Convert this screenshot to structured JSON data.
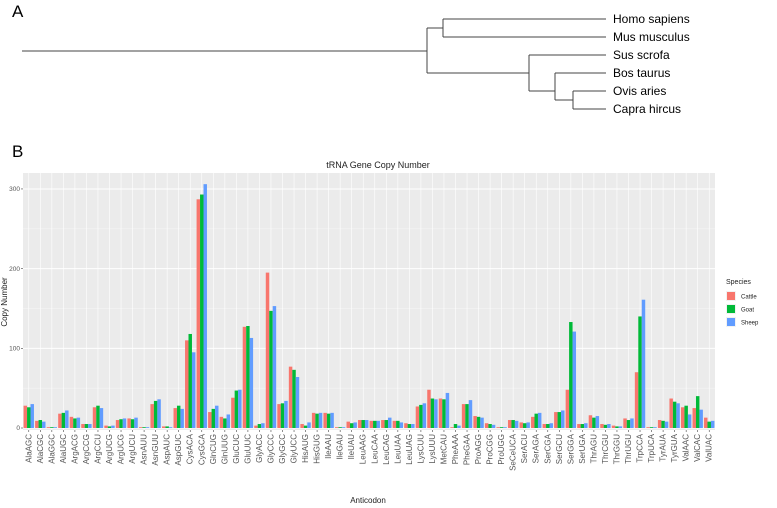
{
  "panels": {
    "a": "A",
    "b": "B"
  },
  "tree": {
    "species": [
      "Homo sapiens",
      "Mus musculus",
      "Sus scrofa",
      "Bos taurus",
      "Ovis aries",
      "Capra hircus"
    ]
  },
  "chart_data": {
    "type": "bar",
    "title": "tRNA Gene Copy Number",
    "xlabel": "Anticodon",
    "ylabel": "Copy Number",
    "ylim": [
      0,
      320
    ],
    "yticks": [
      0,
      100,
      200,
      300
    ],
    "grid": true,
    "legend": {
      "title": "Species",
      "position": "right"
    },
    "categories": [
      "AlaAGC",
      "AlaCGC",
      "AlaGGC",
      "AlaUGC",
      "ArgACG",
      "ArgCCG",
      "ArgCCU",
      "ArgUCG",
      "ArgUCG",
      "ArgUCU",
      "AsnAUU",
      "AsnGUU",
      "AspAUC",
      "AspGUC",
      "CysACA",
      "CysGCA",
      "GlnCUG",
      "GlnUUG",
      "GluCUC",
      "GluUUC",
      "GlyACC",
      "GlyCCC",
      "GlyGCC",
      "GlyUCC",
      "HisAUG",
      "HisGUG",
      "IleAAU",
      "IleGAU",
      "IleUAU",
      "LeuAAG",
      "LeuCAA",
      "LeuCAG",
      "LeuUAA",
      "LeuUAG",
      "LysCUU",
      "LysUUU",
      "MetCAU",
      "PheAAA",
      "PheGAA",
      "ProAGG",
      "ProCGG",
      "ProUGG",
      "SeCeUCA",
      "SerACU",
      "SerAGA",
      "SerCGA",
      "SerGCU",
      "SerGGA",
      "SerUGA",
      "ThrAGU",
      "ThrCGU",
      "ThrGGU",
      "ThrUGU",
      "TrpCCA",
      "TrpUCA",
      "TyrAUA",
      "TyrGUA",
      "ValAAC",
      "ValCAC",
      "ValUAC"
    ],
    "series": [
      {
        "name": "Cattle",
        "color": "#F8766D",
        "values": [
          28,
          9,
          1,
          18,
          14,
          5,
          26,
          3,
          10,
          12,
          1,
          30,
          2,
          25,
          110,
          287,
          20,
          14,
          38,
          127,
          3,
          195,
          30,
          77,
          5,
          19,
          19,
          1,
          8,
          10,
          9,
          10,
          9,
          6,
          27,
          48,
          37,
          1,
          30,
          15,
          6,
          1,
          10,
          7,
          14,
          5,
          20,
          48,
          5,
          16,
          5,
          3,
          12,
          70,
          1,
          10,
          37,
          26,
          25,
          13
        ]
      },
      {
        "name": "Goat",
        "color": "#00BA38",
        "values": [
          26,
          10,
          1,
          19,
          12,
          5,
          28,
          2,
          11,
          11,
          1,
          34,
          2,
          28,
          118,
          293,
          24,
          12,
          47,
          128,
          5,
          147,
          31,
          73,
          3,
          18,
          18,
          1,
          6,
          10,
          9,
          10,
          9,
          5,
          29,
          37,
          36,
          5,
          30,
          14,
          5,
          1,
          10,
          6,
          18,
          5,
          20,
          133,
          5,
          13,
          4,
          2,
          10,
          140,
          1,
          9,
          33,
          28,
          40,
          8
        ]
      },
      {
        "name": "Sheep",
        "color": "#619CFF",
        "values": [
          30,
          8,
          1,
          22,
          13,
          5,
          25,
          3,
          12,
          13,
          1,
          36,
          1,
          24,
          95,
          306,
          28,
          17,
          48,
          113,
          6,
          153,
          34,
          64,
          7,
          19,
          19,
          1,
          7,
          10,
          9,
          13,
          7,
          5,
          31,
          36,
          44,
          3,
          35,
          13,
          4,
          1,
          9,
          7,
          19,
          6,
          22,
          121,
          6,
          15,
          5,
          2,
          12,
          161,
          1,
          8,
          31,
          17,
          23,
          9
        ]
      }
    ]
  }
}
